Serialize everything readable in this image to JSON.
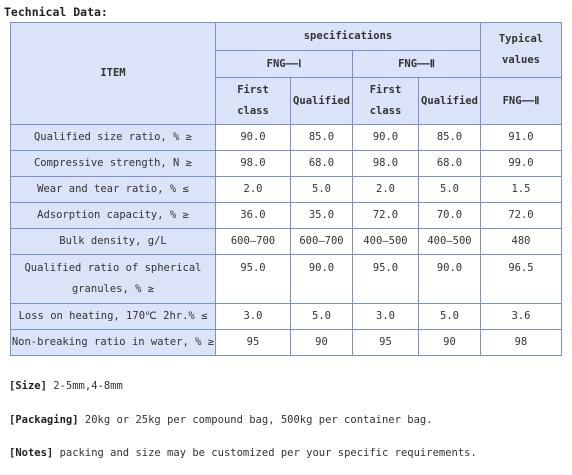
{
  "title": "Technical Data:",
  "header": {
    "item": "ITEM",
    "specifications": "specifications",
    "typical_line1": "Typical",
    "typical_line2": "values",
    "fng1": "FNG——Ⅰ",
    "fng2": "FNG——Ⅱ",
    "typical_fng": "FNG——Ⅱ",
    "first_line1": "First",
    "first_line2": "class",
    "qualified": "Qualified"
  },
  "rows": [
    {
      "item": "Qualified size ratio, % ≥",
      "v": [
        "90.0",
        "85.0",
        "90.0",
        "85.0",
        "91.0"
      ]
    },
    {
      "item": "Compressive strength, N ≥",
      "v": [
        "98.0",
        "68.0",
        "98.0",
        "68.0",
        "99.0"
      ]
    },
    {
      "item": "Wear and tear ratio, % ≤",
      "v": [
        "2.0",
        "5.0",
        "2.0",
        "5.0",
        "1.5"
      ]
    },
    {
      "item": "Adsorption capacity, % ≥",
      "v": [
        "36.0",
        "35.0",
        "72.0",
        "70.0",
        "72.0"
      ]
    },
    {
      "item": "Bulk density, g/L",
      "v": [
        "600—700",
        "600—700",
        "400—500",
        "400—500",
        "480"
      ]
    },
    {
      "item_line1": "Qualified ratio of spherical",
      "item_line2": "granules, % ≥",
      "v": [
        "95.0",
        "90.0",
        "95.0",
        "90.0",
        "96.5"
      ]
    },
    {
      "item": "Loss on heating, 170℃ 2hr.% ≤",
      "v": [
        "3.0",
        "5.0",
        "3.0",
        "5.0",
        "3.6"
      ]
    },
    {
      "item": "Non-breaking ratio in water, % ≥",
      "v": [
        "95",
        "90",
        "95",
        "90",
        "98"
      ]
    }
  ],
  "notes": {
    "size_label": "[Size]",
    "size_text": "2-5mm,4-8mm",
    "packaging_label": "[Packaging]",
    "packaging_text": "20kg or 25kg per compound bag, 500kg per container bag.",
    "notes_label": "[Notes]",
    "notes_text": "packing and size may be customized per your specific requirements."
  },
  "colors": {
    "header_bg": "#dbe3f8",
    "border": "#7a8fcf",
    "text": "#333333"
  }
}
